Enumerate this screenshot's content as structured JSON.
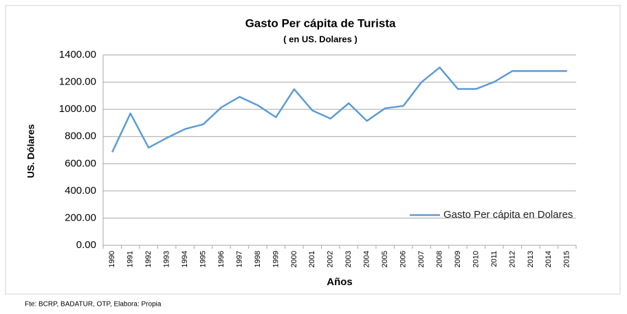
{
  "chart_data": {
    "type": "line",
    "title": "Gasto Per cápita de Turista",
    "subtitle": "( en US. Dolares )",
    "y_label": "US. Dólares",
    "x_label": "Años",
    "source": "Fte: BCRP, BADATUR, OTP, Elabora: Propia",
    "categories": [
      "1990",
      "1991",
      "1992",
      "1993",
      "1994",
      "1995",
      "1996",
      "1997",
      "1998",
      "1999",
      "2000",
      "2001",
      "2002",
      "2003",
      "2004",
      "2005",
      "2006",
      "2007",
      "2008",
      "2009",
      "2010",
      "2011",
      "2012",
      "2013",
      "2014",
      "2015"
    ],
    "series": [
      {
        "name": "Gasto Per cápita en Dolares",
        "color": "#5b9bd5",
        "values": [
          685,
          970,
          718,
          790,
          855,
          890,
          1015,
          1092,
          1030,
          942,
          1148,
          992,
          932,
          1045,
          915,
          1008,
          1025,
          1200,
          1308,
          1150,
          1150,
          1202,
          1282,
          1282,
          1282,
          1282
        ]
      }
    ],
    "ylim": [
      0,
      1400
    ],
    "yticks": [
      {
        "value": 0,
        "label": "0.00"
      },
      {
        "value": 200,
        "label": "200.00"
      },
      {
        "value": 400,
        "label": "400.00"
      },
      {
        "value": 600,
        "label": "600.00"
      },
      {
        "value": 800,
        "label": "800.00"
      },
      {
        "value": 1000,
        "label": "1000.00"
      },
      {
        "value": 1200,
        "label": "1200.00"
      },
      {
        "value": 1400,
        "label": "1400.00"
      }
    ],
    "grid": true
  }
}
